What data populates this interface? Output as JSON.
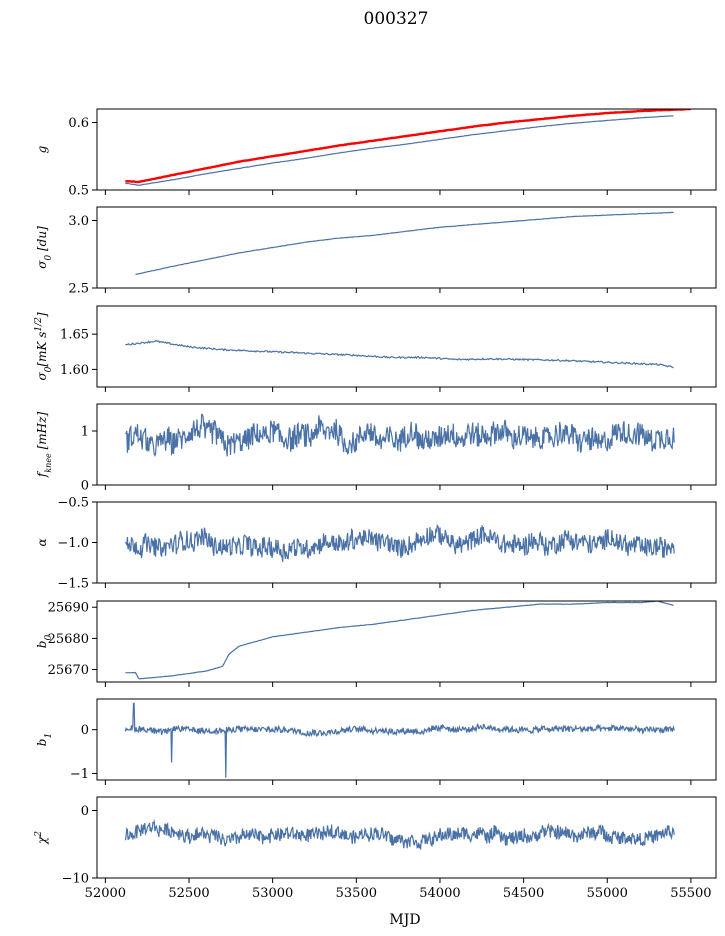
{
  "figure": {
    "title": "000327",
    "xlabel": "MJD"
  },
  "colors": {
    "series": "#4a72a6",
    "highlight": "#ff0000",
    "axes": "#000000"
  },
  "chart_data": [
    {
      "type": "line",
      "ylabel": "g",
      "ylim": [
        0.5,
        0.62
      ],
      "yticks": [
        0.5,
        0.6
      ],
      "ytick_labels": [
        "0.5",
        "0.6"
      ],
      "xlim": [
        51950,
        55650
      ],
      "xticks": [
        52000,
        52500,
        53000,
        53500,
        54000,
        54500,
        55000,
        55500
      ],
      "series": [
        {
          "name": "g",
          "color": "#4a72a6",
          "x": [
            52120,
            52200,
            52400,
            52600,
            52800,
            53000,
            53200,
            53400,
            53600,
            53800,
            54000,
            54200,
            54400,
            54600,
            54800,
            55000,
            55200,
            55400
          ],
          "values": [
            0.51,
            0.507,
            0.515,
            0.524,
            0.532,
            0.54,
            0.547,
            0.555,
            0.562,
            0.568,
            0.575,
            0.582,
            0.588,
            0.594,
            0.599,
            0.603,
            0.607,
            0.61
          ]
        },
        {
          "name": "g (red)",
          "color": "#ff0000",
          "x": [
            52120,
            52200,
            52400,
            52600,
            52800,
            53000,
            53200,
            53400,
            53600,
            53800,
            54000,
            54200,
            54400,
            54600,
            54800,
            55000,
            55200,
            55500
          ],
          "values": [
            0.513,
            0.512,
            0.522,
            0.532,
            0.542,
            0.55,
            0.558,
            0.566,
            0.573,
            0.58,
            0.587,
            0.594,
            0.6,
            0.605,
            0.61,
            0.614,
            0.617,
            0.62
          ]
        }
      ]
    },
    {
      "type": "line",
      "ylabel": "σ0 [du]",
      "ylim": [
        2.5,
        3.1
      ],
      "yticks": [
        2.5,
        3.0
      ],
      "ytick_labels": [
        "2.5",
        "3.0"
      ],
      "xlim": [
        51950,
        55650
      ],
      "series": [
        {
          "name": "sigma0_du",
          "x": [
            52180,
            52400,
            52600,
            52800,
            53000,
            53200,
            53400,
            53600,
            53800,
            54000,
            54200,
            54400,
            54600,
            54800,
            55000,
            55200,
            55400
          ],
          "values": [
            2.6,
            2.66,
            2.71,
            2.76,
            2.8,
            2.84,
            2.87,
            2.89,
            2.92,
            2.95,
            2.97,
            2.99,
            3.01,
            3.03,
            3.04,
            3.05,
            3.06
          ]
        }
      ]
    },
    {
      "type": "line",
      "ylabel": "σ0[mK s^1/2]",
      "ylim": [
        1.575,
        1.69
      ],
      "yticks": [
        1.6,
        1.65
      ],
      "ytick_labels": [
        "1.60",
        "1.65"
      ],
      "xlim": [
        51950,
        55650
      ],
      "series": [
        {
          "name": "sigma0_mK",
          "x": [
            52120,
            52300,
            52500,
            52700,
            52900,
            53100,
            53300,
            53500,
            53700,
            53900,
            54100,
            54300,
            54500,
            54700,
            54900,
            55100,
            55300,
            55400
          ],
          "values": [
            1.635,
            1.64,
            1.632,
            1.628,
            1.626,
            1.624,
            1.622,
            1.62,
            1.617,
            1.617,
            1.614,
            1.615,
            1.614,
            1.613,
            1.611,
            1.609,
            1.607,
            1.603
          ]
        }
      ]
    },
    {
      "type": "line",
      "ylabel": "fknee [mHz]",
      "ylim": [
        0,
        1.5
      ],
      "yticks": [
        0,
        1
      ],
      "ytick_labels": [
        "0",
        "1"
      ],
      "xlim": [
        51950,
        55650
      ],
      "series": [
        {
          "name": "fknee",
          "mean": 0.85,
          "amplitude": 0.22,
          "x": [
            52120,
            55400
          ]
        }
      ]
    },
    {
      "type": "line",
      "ylabel": "α",
      "ylim": [
        -1.5,
        -0.5
      ],
      "yticks": [
        -1.5,
        -1.0,
        -0.5
      ],
      "ytick_labels": [
        "−1.5",
        "−1.0",
        "−0.5"
      ],
      "xlim": [
        51950,
        55650
      ],
      "series": [
        {
          "name": "alpha",
          "mean": -1.0,
          "amplitude": 0.12,
          "x": [
            52120,
            55400
          ]
        }
      ]
    },
    {
      "type": "line",
      "ylabel": "b0",
      "ylim": [
        25666,
        25692
      ],
      "yticks": [
        25670,
        25680,
        25690
      ],
      "ytick_labels": [
        "25670",
        "25680",
        "25690"
      ],
      "xlim": [
        51950,
        55650
      ],
      "series": [
        {
          "name": "b0",
          "x": [
            52120,
            52180,
            52200,
            52400,
            52600,
            52700,
            52720,
            52740,
            52800,
            53000,
            53200,
            53400,
            53600,
            53800,
            54000,
            54200,
            54400,
            54600,
            54800,
            55000,
            55200,
            55300,
            55400
          ],
          "values": [
            25669,
            25669,
            25667,
            25668,
            25669.5,
            25671,
            25673,
            25675,
            25677.5,
            25680.5,
            25682,
            25683.5,
            25684.5,
            25686,
            25687.5,
            25689,
            25690,
            25691,
            25691,
            25691.5,
            25691.5,
            25692,
            25690.5
          ]
        }
      ]
    },
    {
      "type": "line",
      "ylabel": "b1",
      "ylim": [
        -1.15,
        0.7
      ],
      "yticks": [
        -1,
        0
      ],
      "ytick_labels": [
        "−1",
        "0"
      ],
      "xlim": [
        51950,
        55650
      ],
      "series": [
        {
          "name": "b1",
          "mean": 0.0,
          "amplitude": 0.07,
          "spikes": [
            {
              "x": 52170,
              "y": 0.6
            },
            {
              "x": 52395,
              "y": -0.75
            },
            {
              "x": 52720,
              "y": -1.1
            }
          ],
          "x": [
            52120,
            55400
          ]
        }
      ]
    },
    {
      "type": "line",
      "ylabel": "χ²",
      "ylim": [
        -10,
        2
      ],
      "yticks": [
        -10,
        0
      ],
      "ytick_labels": [
        "−10",
        "0"
      ],
      "xticks": [
        52000,
        52500,
        53000,
        53500,
        54000,
        54500,
        55000,
        55500
      ],
      "xtick_labels": [
        "52000",
        "52500",
        "53000",
        "53500",
        "54000",
        "54500",
        "55000",
        "55500"
      ],
      "xlim": [
        51950,
        55650
      ],
      "series": [
        {
          "name": "chi2",
          "mean": -3.5,
          "amplitude": 1.0,
          "x": [
            52120,
            55400
          ]
        }
      ]
    }
  ]
}
